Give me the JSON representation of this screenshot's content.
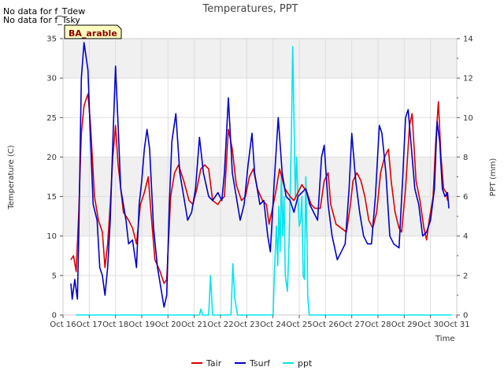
{
  "notes": [
    "No data for f_Tdew",
    "No data for f_Tsky"
  ],
  "badge": "BA_arable",
  "colors": {
    "Tair": "#dd0000",
    "Tsurf": "#0000cc",
    "ppt": "#00e5ee",
    "band": "#f0f0f0",
    "grid": "#dddddd"
  },
  "chart_data": {
    "type": "line",
    "title": "Temperatures, PPT",
    "xlabel": "Time",
    "ylabel_left": "Temperature (C)",
    "ylabel_right": "PPT (mm)",
    "xlim": [
      16,
      31
    ],
    "ylim_left": [
      0,
      35
    ],
    "ylim_right": [
      0,
      14
    ],
    "x_ticks": [
      {
        "day": 16,
        "label": "Oct 16"
      },
      {
        "day": 17,
        "label": "Oct 17"
      },
      {
        "day": 18,
        "label": "Oct 18"
      },
      {
        "day": 19,
        "label": "Oct 19"
      },
      {
        "day": 20,
        "label": "Oct 20"
      },
      {
        "day": 21,
        "label": "Oct 21"
      },
      {
        "day": 22,
        "label": "Oct 22"
      },
      {
        "day": 23,
        "label": "Oct 23"
      },
      {
        "day": 24,
        "label": "Oct 24"
      },
      {
        "day": 25,
        "label": "Oct 25"
      },
      {
        "day": 26,
        "label": "Oct 26"
      },
      {
        "day": 27,
        "label": "Oct 27"
      },
      {
        "day": 28,
        "label": "Oct 28"
      },
      {
        "day": 29,
        "label": "Oct 29"
      },
      {
        "day": 30,
        "label": "Oct 30"
      },
      {
        "day": 31,
        "label": "Oct 31"
      }
    ],
    "y_ticks_left": [
      0,
      5,
      10,
      15,
      20,
      25,
      30,
      35
    ],
    "y_ticks_right": [
      0,
      2,
      4,
      6,
      8,
      10,
      12,
      14
    ],
    "legend": {
      "placement": "bottom-center",
      "entries": [
        "Tair",
        "Tsurf",
        "ppt"
      ]
    },
    "series": [
      {
        "name": "Tair",
        "axis": "left",
        "points": [
          [
            16.3,
            7
          ],
          [
            16.4,
            7.5
          ],
          [
            16.5,
            5.5
          ],
          [
            16.6,
            13
          ],
          [
            16.7,
            23
          ],
          [
            16.8,
            26.5
          ],
          [
            16.95,
            28
          ],
          [
            17.05,
            24
          ],
          [
            17.2,
            15
          ],
          [
            17.35,
            12
          ],
          [
            17.5,
            10.5
          ],
          [
            17.6,
            6
          ],
          [
            17.7,
            9
          ],
          [
            17.8,
            14
          ],
          [
            17.9,
            20
          ],
          [
            18.0,
            24
          ],
          [
            18.1,
            19
          ],
          [
            18.3,
            13
          ],
          [
            18.5,
            12
          ],
          [
            18.65,
            11
          ],
          [
            18.8,
            9
          ],
          [
            18.95,
            14
          ],
          [
            19.1,
            15.5
          ],
          [
            19.25,
            17.5
          ],
          [
            19.35,
            13
          ],
          [
            19.5,
            7
          ],
          [
            19.7,
            5.5
          ],
          [
            19.85,
            4
          ],
          [
            19.95,
            4.5
          ],
          [
            20.1,
            15
          ],
          [
            20.25,
            18
          ],
          [
            20.4,
            19
          ],
          [
            20.6,
            17
          ],
          [
            20.8,
            14.5
          ],
          [
            20.95,
            14
          ],
          [
            21.1,
            16
          ],
          [
            21.25,
            18.5
          ],
          [
            21.4,
            19
          ],
          [
            21.55,
            18.5
          ],
          [
            21.7,
            14.5
          ],
          [
            21.9,
            14
          ],
          [
            22.0,
            14.5
          ],
          [
            22.15,
            15
          ],
          [
            22.3,
            23.5
          ],
          [
            22.45,
            21
          ],
          [
            22.6,
            16.5
          ],
          [
            22.8,
            14.5
          ],
          [
            22.95,
            15
          ],
          [
            23.1,
            17.5
          ],
          [
            23.25,
            18.5
          ],
          [
            23.4,
            16
          ],
          [
            23.6,
            14.5
          ],
          [
            23.75,
            14
          ],
          [
            23.85,
            11.5
          ],
          [
            23.95,
            13
          ],
          [
            24.1,
            15.5
          ],
          [
            24.25,
            18.5
          ],
          [
            24.45,
            16
          ],
          [
            24.65,
            15
          ],
          [
            24.8,
            14.5
          ],
          [
            24.95,
            15.5
          ],
          [
            25.1,
            16.5
          ],
          [
            25.3,
            15.5
          ],
          [
            25.45,
            14
          ],
          [
            25.6,
            13.5
          ],
          [
            25.8,
            13.5
          ],
          [
            25.95,
            17
          ],
          [
            26.1,
            18
          ],
          [
            26.2,
            14
          ],
          [
            26.4,
            11.5
          ],
          [
            26.6,
            11
          ],
          [
            26.8,
            10.5
          ],
          [
            26.95,
            14
          ],
          [
            27.05,
            17
          ],
          [
            27.2,
            18
          ],
          [
            27.35,
            17
          ],
          [
            27.5,
            15
          ],
          [
            27.65,
            12
          ],
          [
            27.8,
            11
          ],
          [
            27.95,
            13
          ],
          [
            28.1,
            18
          ],
          [
            28.25,
            20
          ],
          [
            28.4,
            21
          ],
          [
            28.5,
            17
          ],
          [
            28.65,
            13
          ],
          [
            28.8,
            11
          ],
          [
            28.9,
            10.5
          ],
          [
            29.05,
            16
          ],
          [
            29.2,
            24
          ],
          [
            29.3,
            25.5
          ],
          [
            29.45,
            17
          ],
          [
            29.6,
            14.5
          ],
          [
            29.75,
            11
          ],
          [
            29.85,
            9.5
          ],
          [
            29.95,
            12
          ],
          [
            30.1,
            15
          ],
          [
            30.2,
            22
          ],
          [
            30.3,
            27
          ],
          [
            30.4,
            20
          ],
          [
            30.5,
            16
          ],
          [
            30.6,
            15.5
          ],
          [
            30.65,
            14.5
          ]
        ]
      },
      {
        "name": "Tsurf",
        "axis": "left",
        "points": [
          [
            16.3,
            4
          ],
          [
            16.35,
            2
          ],
          [
            16.45,
            4.5
          ],
          [
            16.55,
            2
          ],
          [
            16.6,
            10
          ],
          [
            16.7,
            30
          ],
          [
            16.8,
            34.5
          ],
          [
            16.95,
            31
          ],
          [
            17.05,
            22
          ],
          [
            17.15,
            14
          ],
          [
            17.3,
            12
          ],
          [
            17.4,
            6
          ],
          [
            17.5,
            5
          ],
          [
            17.6,
            2.5
          ],
          [
            17.7,
            6
          ],
          [
            17.8,
            12
          ],
          [
            17.9,
            22
          ],
          [
            18.0,
            31.5
          ],
          [
            18.1,
            24
          ],
          [
            18.2,
            16
          ],
          [
            18.4,
            12
          ],
          [
            18.5,
            9
          ],
          [
            18.65,
            9.5
          ],
          [
            18.8,
            6
          ],
          [
            18.9,
            14
          ],
          [
            19.0,
            17
          ],
          [
            19.1,
            21
          ],
          [
            19.2,
            23.5
          ],
          [
            19.3,
            21
          ],
          [
            19.45,
            11
          ],
          [
            19.6,
            6
          ],
          [
            19.75,
            3
          ],
          [
            19.85,
            1
          ],
          [
            19.95,
            2.5
          ],
          [
            20.05,
            14
          ],
          [
            20.15,
            22
          ],
          [
            20.3,
            25.5
          ],
          [
            20.45,
            18
          ],
          [
            20.6,
            15
          ],
          [
            20.75,
            12
          ],
          [
            20.9,
            13
          ],
          [
            21.05,
            16
          ],
          [
            21.2,
            22.5
          ],
          [
            21.35,
            18
          ],
          [
            21.55,
            15
          ],
          [
            21.7,
            14.5
          ],
          [
            21.9,
            15.5
          ],
          [
            22.05,
            14.5
          ],
          [
            22.15,
            18
          ],
          [
            22.3,
            27.5
          ],
          [
            22.45,
            18
          ],
          [
            22.6,
            15
          ],
          [
            22.75,
            12
          ],
          [
            22.9,
            14
          ],
          [
            23.05,
            19
          ],
          [
            23.2,
            23
          ],
          [
            23.3,
            18
          ],
          [
            23.5,
            14
          ],
          [
            23.65,
            14.5
          ],
          [
            23.8,
            10
          ],
          [
            23.9,
            8
          ],
          [
            24.05,
            17
          ],
          [
            24.2,
            25
          ],
          [
            24.35,
            18
          ],
          [
            24.5,
            15
          ],
          [
            24.65,
            14.5
          ],
          [
            24.8,
            13
          ],
          [
            24.95,
            15
          ],
          [
            25.1,
            15.5
          ],
          [
            25.25,
            16
          ],
          [
            25.4,
            14
          ],
          [
            25.55,
            13
          ],
          [
            25.7,
            12
          ],
          [
            25.85,
            20
          ],
          [
            25.95,
            21.5
          ],
          [
            26.1,
            14
          ],
          [
            26.25,
            10
          ],
          [
            26.45,
            7
          ],
          [
            26.6,
            8
          ],
          [
            26.75,
            9
          ],
          [
            26.9,
            16
          ],
          [
            27.0,
            23
          ],
          [
            27.15,
            17
          ],
          [
            27.3,
            13
          ],
          [
            27.45,
            10
          ],
          [
            27.6,
            9
          ],
          [
            27.75,
            9
          ],
          [
            27.9,
            15
          ],
          [
            28.05,
            24
          ],
          [
            28.15,
            23
          ],
          [
            28.3,
            18
          ],
          [
            28.45,
            10
          ],
          [
            28.6,
            9
          ],
          [
            28.8,
            8.5
          ],
          [
            28.95,
            18
          ],
          [
            29.05,
            25
          ],
          [
            29.15,
            26
          ],
          [
            29.25,
            22
          ],
          [
            29.4,
            16
          ],
          [
            29.55,
            14
          ],
          [
            29.7,
            10
          ],
          [
            29.85,
            10.5
          ],
          [
            30.0,
            12
          ],
          [
            30.15,
            16
          ],
          [
            30.25,
            24.5
          ],
          [
            30.35,
            22
          ],
          [
            30.45,
            16
          ],
          [
            30.55,
            15
          ],
          [
            30.65,
            15.5
          ],
          [
            30.7,
            13.5
          ]
        ]
      },
      {
        "name": "ppt",
        "axis": "right",
        "points": [
          [
            16.5,
            0
          ],
          [
            21.2,
            0
          ],
          [
            21.25,
            0.3
          ],
          [
            21.32,
            0
          ],
          [
            21.55,
            0
          ],
          [
            21.62,
            2
          ],
          [
            21.7,
            0
          ],
          [
            22.4,
            0
          ],
          [
            22.47,
            2.6
          ],
          [
            22.55,
            0.8
          ],
          [
            22.65,
            0
          ],
          [
            24.0,
            0
          ],
          [
            24.08,
            3
          ],
          [
            24.13,
            4.5
          ],
          [
            24.18,
            2.5
          ],
          [
            24.22,
            5.5
          ],
          [
            24.27,
            3.2
          ],
          [
            24.32,
            7.2
          ],
          [
            24.37,
            4
          ],
          [
            24.42,
            6
          ],
          [
            24.47,
            2
          ],
          [
            24.55,
            1.2
          ],
          [
            24.62,
            4
          ],
          [
            24.7,
            9
          ],
          [
            24.75,
            13.6
          ],
          [
            24.8,
            10
          ],
          [
            24.85,
            6
          ],
          [
            24.9,
            8
          ],
          [
            24.95,
            6
          ],
          [
            25.0,
            4.5
          ],
          [
            25.05,
            4.8
          ],
          [
            25.1,
            6
          ],
          [
            25.15,
            2
          ],
          [
            25.2,
            1.8
          ],
          [
            25.25,
            7
          ],
          [
            25.3,
            3.5
          ],
          [
            25.32,
            1
          ],
          [
            25.38,
            0
          ],
          [
            26.0,
            0
          ],
          [
            30.8,
            0
          ]
        ]
      }
    ]
  }
}
